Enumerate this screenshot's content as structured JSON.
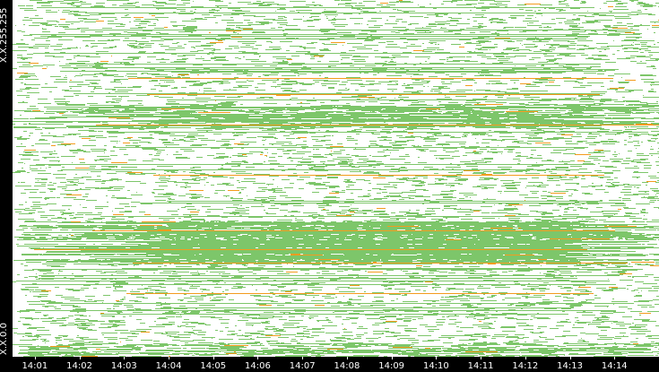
{
  "chart_data": {
    "type": "heatmap",
    "title": "",
    "xlabel": "",
    "ylabel": "",
    "y_axis_labels": {
      "top": "X.X.255.255",
      "bottom": "X.X.0.0"
    },
    "x_tick_labels": [
      "14:01",
      "14:02",
      "14:03",
      "14:04",
      "14:05",
      "14:06",
      "14:07",
      "14:08",
      "14:09",
      "14:10",
      "14:11",
      "14:12",
      "14:13",
      "14:14"
    ],
    "x_range": [
      "14:00:30",
      "14:15:00"
    ],
    "y_range": [
      "X.X.0.0",
      "X.X.255.255"
    ],
    "colors": {
      "background": "#000000",
      "plot_background": "#ffffff",
      "activity_low": "#7dc66a",
      "activity_high": "#f39c1e",
      "label_text": "#ffffff"
    },
    "dense_address_bands": [
      {
        "from_fraction": 0.62,
        "to_fraction": 0.74,
        "intensity": "high"
      },
      {
        "from_fraction": 0.29,
        "to_fraction": 0.36,
        "intensity": "medium"
      },
      {
        "from_fraction": 0.96,
        "to_fraction": 1.0,
        "intensity": "medium"
      }
    ]
  }
}
